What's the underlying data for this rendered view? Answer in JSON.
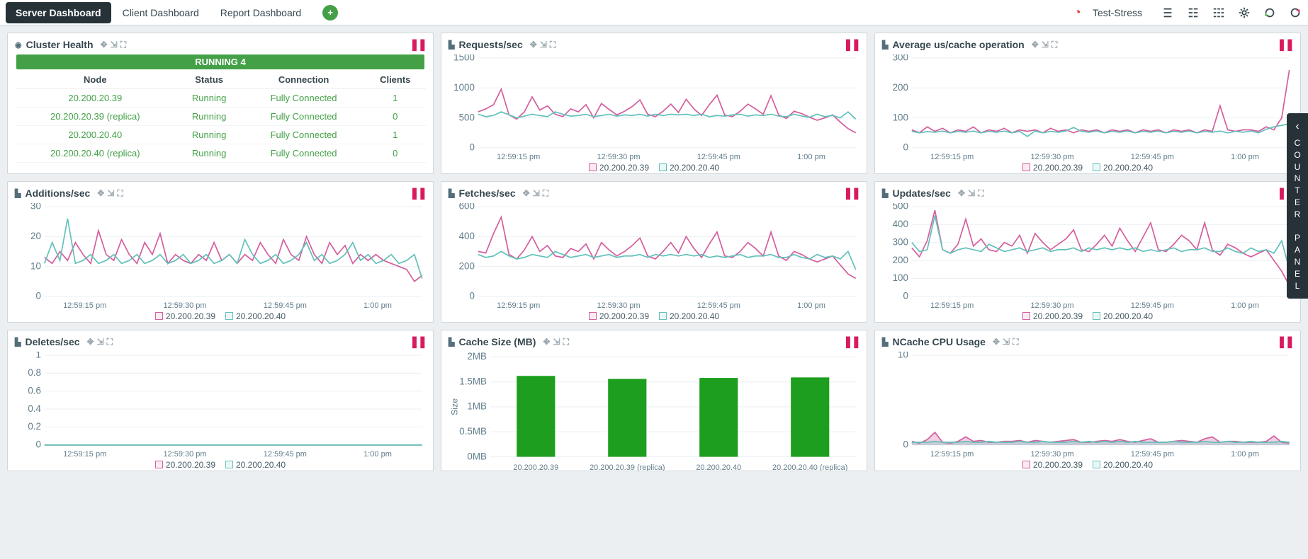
{
  "topbar": {
    "tabs": [
      {
        "label": "Server Dashboard",
        "active": true
      },
      {
        "label": "Client Dashboard",
        "active": false
      },
      {
        "label": "Report Dashboard",
        "active": false
      }
    ],
    "gauge_label": "Test-Stress"
  },
  "side_panel": {
    "label": "COUNTER PANEL"
  },
  "colors": {
    "series1": "#d45f9e",
    "series2": "#63c1bb",
    "series1_fill": "rgba(212,95,158,0.35)",
    "series2_fill": "rgba(99,193,187,0.35)",
    "bar": "#1e9e1e",
    "grid": "#eef2f4",
    "axis": "#607d8b"
  },
  "x_labels": [
    "12:59:15 pm",
    "12:59:30 pm",
    "12:59:45 pm",
    "1:00 pm"
  ],
  "legend_nodes": [
    "20.200.20.39",
    "20.200.20.40"
  ],
  "cluster_health": {
    "title": "Cluster Health",
    "bar": "RUNNING 4",
    "columns": [
      "Node",
      "Status",
      "Connection",
      "Clients"
    ],
    "rows": [
      [
        "20.200.20.39",
        "Running",
        "Fully Connected",
        "1"
      ],
      [
        "20.200.20.39 (replica)",
        "Running",
        "Fully Connected",
        "0"
      ],
      [
        "20.200.20.40",
        "Running",
        "Fully Connected",
        "1"
      ],
      [
        "20.200.20.40 (replica)",
        "Running",
        "Fully Connected",
        "0"
      ]
    ]
  },
  "panels": {
    "requests": {
      "title": "Requests/sec",
      "type": "line",
      "ylim": [
        0,
        1500
      ],
      "yticks": [
        0,
        500,
        1000,
        1500
      ],
      "series": [
        {
          "color": "#d45f9e",
          "data": [
            600,
            650,
            720,
            980,
            550,
            480,
            600,
            850,
            630,
            700,
            560,
            520,
            650,
            600,
            720,
            500,
            740,
            640,
            550,
            610,
            690,
            800,
            560,
            520,
            610,
            730,
            590,
            810,
            650,
            540,
            720,
            880,
            550,
            520,
            610,
            730,
            650,
            560,
            870,
            550,
            490,
            610,
            570,
            510,
            460,
            500,
            550,
            430,
            320,
            250
          ]
        },
        {
          "color": "#63c1bb",
          "data": [
            560,
            520,
            540,
            600,
            550,
            500,
            530,
            560,
            540,
            520,
            600,
            560,
            530,
            540,
            560,
            520,
            540,
            560,
            530,
            550,
            540,
            560,
            530,
            560,
            540,
            560,
            550,
            560,
            540,
            560,
            520,
            540,
            530,
            550,
            560,
            530,
            550,
            540,
            560,
            530,
            520,
            560,
            530,
            510,
            560,
            520,
            540,
            500,
            600,
            480
          ]
        }
      ]
    },
    "avg_cache": {
      "title": "Average us/cache operation",
      "type": "line",
      "ylim": [
        0,
        300
      ],
      "yticks": [
        0,
        100,
        200,
        300
      ],
      "series": [
        {
          "color": "#d45f9e",
          "data": [
            60,
            50,
            70,
            55,
            65,
            50,
            60,
            55,
            70,
            50,
            60,
            55,
            65,
            50,
            60,
            55,
            60,
            50,
            65,
            55,
            60,
            50,
            60,
            55,
            60,
            50,
            60,
            55,
            60,
            50,
            60,
            55,
            60,
            50,
            60,
            55,
            60,
            50,
            60,
            55,
            140,
            60,
            55,
            60,
            60,
            55,
            70,
            60,
            100,
            260
          ]
        },
        {
          "color": "#63c1bb",
          "data": [
            55,
            50,
            54,
            52,
            56,
            50,
            55,
            52,
            56,
            50,
            55,
            52,
            56,
            50,
            55,
            38,
            56,
            50,
            55,
            52,
            56,
            68,
            55,
            52,
            56,
            50,
            55,
            52,
            56,
            50,
            55,
            52,
            56,
            50,
            55,
            52,
            56,
            50,
            55,
            52,
            56,
            50,
            55,
            52,
            56,
            50,
            62,
            70,
            75,
            80
          ]
        }
      ]
    },
    "additions": {
      "title": "Additions/sec",
      "type": "line",
      "ylim": [
        0,
        30
      ],
      "yticks": [
        0,
        10,
        20,
        30
      ],
      "series": [
        {
          "color": "#d45f9e",
          "data": [
            13,
            11,
            15,
            12,
            18,
            14,
            11,
            22,
            14,
            12,
            19,
            14,
            11,
            18,
            14,
            21,
            11,
            14,
            12,
            11,
            14,
            12,
            18,
            12,
            14,
            11,
            14,
            12,
            18,
            14,
            11,
            19,
            14,
            12,
            20,
            14,
            11,
            18,
            14,
            17,
            11,
            14,
            12,
            14,
            12,
            11,
            10,
            9,
            5,
            7
          ]
        },
        {
          "color": "#63c1bb",
          "data": [
            11,
            18,
            12,
            26,
            11,
            12,
            14,
            11,
            12,
            14,
            11,
            12,
            14,
            11,
            12,
            14,
            11,
            12,
            14,
            11,
            12,
            14,
            11,
            12,
            14,
            11,
            19,
            14,
            11,
            12,
            14,
            11,
            12,
            14,
            18,
            12,
            14,
            11,
            12,
            14,
            18,
            12,
            14,
            11,
            12,
            14,
            11,
            12,
            14,
            6
          ]
        }
      ]
    },
    "fetches": {
      "title": "Fetches/sec",
      "type": "line",
      "ylim": [
        0,
        600
      ],
      "yticks": [
        0,
        200,
        400,
        600
      ],
      "series": [
        {
          "color": "#d45f9e",
          "data": [
            300,
            290,
            420,
            530,
            280,
            250,
            310,
            400,
            300,
            340,
            270,
            260,
            320,
            300,
            350,
            250,
            360,
            310,
            270,
            300,
            340,
            390,
            270,
            250,
            300,
            360,
            290,
            400,
            320,
            260,
            350,
            430,
            270,
            260,
            300,
            360,
            320,
            270,
            430,
            270,
            240,
            300,
            280,
            250,
            230,
            250,
            270,
            210,
            150,
            120
          ]
        },
        {
          "color": "#63c1bb",
          "data": [
            280,
            260,
            270,
            300,
            270,
            250,
            260,
            280,
            270,
            260,
            300,
            280,
            260,
            270,
            280,
            260,
            270,
            280,
            260,
            270,
            270,
            280,
            260,
            280,
            270,
            280,
            270,
            280,
            270,
            280,
            260,
            270,
            260,
            270,
            280,
            260,
            270,
            270,
            280,
            260,
            260,
            280,
            260,
            250,
            280,
            260,
            270,
            250,
            300,
            180
          ]
        }
      ]
    },
    "updates": {
      "title": "Updates/sec",
      "type": "line",
      "ylim": [
        0,
        500
      ],
      "yticks": [
        0,
        100,
        200,
        300,
        400,
        500
      ],
      "series": [
        {
          "color": "#d45f9e",
          "data": [
            270,
            220,
            310,
            480,
            260,
            240,
            290,
            430,
            280,
            320,
            260,
            250,
            300,
            280,
            340,
            240,
            350,
            300,
            260,
            290,
            320,
            370,
            260,
            250,
            290,
            340,
            280,
            380,
            310,
            250,
            330,
            410,
            260,
            250,
            290,
            340,
            310,
            260,
            410,
            260,
            230,
            290,
            270,
            240,
            220,
            240,
            260,
            200,
            140,
            60
          ]
        },
        {
          "color": "#63c1bb",
          "data": [
            300,
            250,
            260,
            450,
            260,
            240,
            260,
            270,
            260,
            250,
            290,
            270,
            250,
            260,
            270,
            250,
            260,
            270,
            250,
            260,
            260,
            270,
            250,
            270,
            260,
            270,
            260,
            270,
            260,
            270,
            250,
            260,
            250,
            260,
            270,
            250,
            260,
            260,
            270,
            250,
            250,
            270,
            250,
            240,
            270,
            250,
            260,
            240,
            310,
            150
          ]
        }
      ]
    },
    "deletes": {
      "title": "Deletes/sec",
      "type": "line",
      "ylim": [
        0,
        1
      ],
      "yticks": [
        0,
        0.2,
        0.4,
        0.6,
        0.8,
        1.0
      ],
      "series": [
        {
          "color": "#d45f9e",
          "data": [
            0,
            0,
            0,
            0,
            0,
            0,
            0,
            0,
            0,
            0,
            0,
            0,
            0,
            0,
            0,
            0,
            0,
            0,
            0,
            0,
            0,
            0,
            0,
            0,
            0,
            0,
            0,
            0,
            0,
            0,
            0,
            0,
            0,
            0,
            0,
            0,
            0,
            0,
            0,
            0,
            0,
            0,
            0,
            0,
            0,
            0,
            0,
            0,
            0,
            0
          ]
        },
        {
          "color": "#63c1bb",
          "data": [
            0,
            0,
            0,
            0,
            0,
            0,
            0,
            0,
            0,
            0,
            0,
            0,
            0,
            0,
            0,
            0,
            0,
            0,
            0,
            0,
            0,
            0,
            0,
            0,
            0,
            0,
            0,
            0,
            0,
            0,
            0,
            0,
            0,
            0,
            0,
            0,
            0,
            0,
            0,
            0,
            0,
            0,
            0,
            0,
            0,
            0,
            0,
            0,
            0,
            0
          ]
        }
      ]
    },
    "cache_size": {
      "title": "Cache Size (MB)",
      "type": "bar",
      "ylabel": "Size",
      "ylim": [
        0,
        2
      ],
      "ytick_labels": [
        "0MB",
        "0.5MB",
        "1MB",
        "1.5MB",
        "2MB"
      ],
      "yticks": [
        0,
        0.5,
        1,
        1.5,
        2
      ],
      "categories": [
        "20.200.20.39",
        "20.200.20.39 (replica)",
        "20.200.20.40",
        "20.200.20.40 (replica)"
      ],
      "values": [
        1.62,
        1.56,
        1.58,
        1.59
      ],
      "bar_color": "#1e9e1e",
      "bar_width": 0.42
    },
    "cpu": {
      "title": "NCache CPU Usage",
      "type": "area",
      "ylim": [
        0,
        10
      ],
      "yticks": [
        0,
        10
      ],
      "series": [
        {
          "color": "#d45f9e",
          "fill": "rgba(212,95,158,0.5)",
          "data": [
            0.4,
            0.2,
            0.6,
            1.4,
            0.3,
            0.2,
            0.4,
            0.9,
            0.4,
            0.5,
            0.3,
            0.3,
            0.4,
            0.4,
            0.5,
            0.3,
            0.5,
            0.4,
            0.3,
            0.4,
            0.5,
            0.6,
            0.3,
            0.3,
            0.4,
            0.5,
            0.4,
            0.6,
            0.4,
            0.3,
            0.5,
            0.7,
            0.3,
            0.3,
            0.4,
            0.5,
            0.4,
            0.3,
            0.7,
            0.9,
            0.3,
            0.4,
            0.4,
            0.3,
            0.3,
            0.3,
            0.4,
            1.0,
            0.3,
            0.2
          ]
        },
        {
          "color": "#63c1bb",
          "fill": "rgba(99,193,187,0.5)",
          "data": [
            0.3,
            0.3,
            0.3,
            0.4,
            0.3,
            0.3,
            0.3,
            0.4,
            0.3,
            0.3,
            0.4,
            0.3,
            0.3,
            0.3,
            0.4,
            0.3,
            0.3,
            0.4,
            0.3,
            0.3,
            0.3,
            0.4,
            0.3,
            0.4,
            0.3,
            0.4,
            0.3,
            0.4,
            0.3,
            0.4,
            0.3,
            0.3,
            0.3,
            0.3,
            0.4,
            0.3,
            0.3,
            0.3,
            0.4,
            0.3,
            0.3,
            0.4,
            0.3,
            0.3,
            0.4,
            0.3,
            0.3,
            0.3,
            0.4,
            0.3
          ]
        }
      ]
    }
  }
}
